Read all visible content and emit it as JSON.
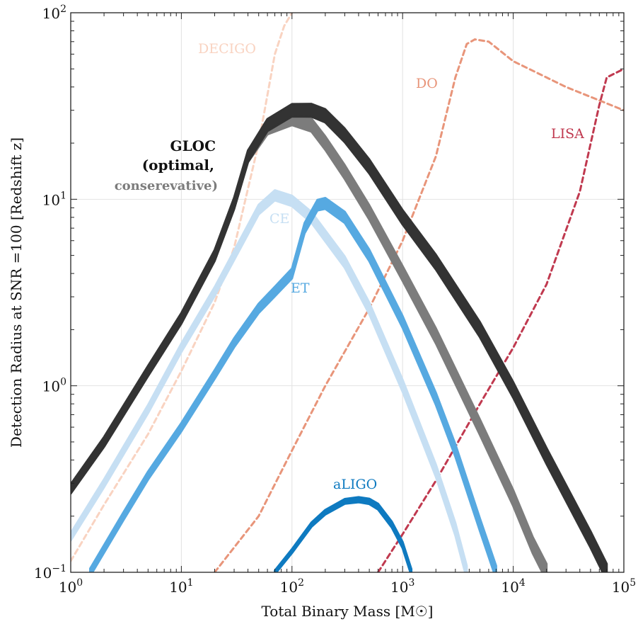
{
  "chart_data": {
    "type": "line",
    "title": "",
    "xlabel": "Total Binary Mass [M☉]",
    "ylabel": "Detection Radius at SNR =100 [Redshift  z]",
    "xscale": "log",
    "yscale": "log",
    "xlim": [
      1,
      100000
    ],
    "ylim": [
      0.1,
      100
    ],
    "grid": true,
    "x_ticks": [
      {
        "value": 1,
        "base": "10",
        "exp": "0"
      },
      {
        "value": 10,
        "base": "10",
        "exp": "1"
      },
      {
        "value": 100,
        "base": "10",
        "exp": "2"
      },
      {
        "value": 1000,
        "base": "10",
        "exp": "3"
      },
      {
        "value": 10000,
        "base": "10",
        "exp": "4"
      },
      {
        "value": 100000,
        "base": "10",
        "exp": "5"
      }
    ],
    "y_ticks": [
      {
        "value": 0.1,
        "base": "10",
        "exp": "−1"
      },
      {
        "value": 1,
        "base": "10",
        "exp": "0"
      },
      {
        "value": 10,
        "base": "10",
        "exp": "1"
      },
      {
        "value": 100,
        "base": "10",
        "exp": "2"
      }
    ],
    "series": [
      {
        "name": "DECIGO",
        "color": "#f9d3c1",
        "style": "dashed",
        "x": [
          1,
          2,
          5,
          10,
          20,
          30,
          50,
          70,
          85,
          100
        ],
        "y": [
          0.115,
          0.23,
          0.55,
          1.2,
          2.8,
          5.5,
          20,
          60,
          85,
          100
        ]
      },
      {
        "name": "DO",
        "color": "#e8957a",
        "style": "dashed",
        "x": [
          20,
          50,
          100,
          200,
          500,
          1000,
          2000,
          3000,
          3800,
          4500,
          6000,
          10000,
          30000,
          100000
        ],
        "y": [
          0.1,
          0.2,
          0.45,
          1.0,
          2.6,
          6.0,
          17,
          45,
          68,
          72,
          70,
          55,
          40,
          30
        ]
      },
      {
        "name": "LISA",
        "color": "#c0394f",
        "style": "dashed",
        "x": [
          600,
          1000,
          2000,
          5000,
          10000,
          20000,
          40000,
          60000,
          70000,
          100000
        ],
        "y": [
          0.1,
          0.16,
          0.31,
          0.8,
          1.6,
          3.5,
          11,
          32,
          45,
          50
        ]
      },
      {
        "name": "GLOC (conservative)",
        "color": "#7c7c7c",
        "style": "band",
        "width_dex": [
          0.05,
          0.09
        ],
        "x": [
          1,
          2,
          5,
          10,
          20,
          30,
          40,
          60,
          100,
          150,
          200,
          300,
          500,
          1000,
          2000,
          5000,
          10000,
          15000,
          20000
        ],
        "y": [
          0.28,
          0.5,
          1.2,
          2.3,
          5.0,
          9.5,
          17,
          24,
          27,
          25,
          20,
          14,
          8.5,
          4.0,
          1.85,
          0.6,
          0.25,
          0.14,
          0.1
        ]
      },
      {
        "name": "GLOC (optimal)",
        "color": "#333333",
        "style": "band",
        "width_dex": [
          0.05,
          0.09
        ],
        "x": [
          1,
          2,
          5,
          10,
          20,
          30,
          40,
          60,
          100,
          150,
          200,
          300,
          500,
          1000,
          2000,
          5000,
          10000,
          20000,
          50000,
          70000
        ],
        "y": [
          0.28,
          0.5,
          1.2,
          2.3,
          5.0,
          9.5,
          17,
          25,
          30,
          30,
          28,
          22,
          15,
          8.0,
          4.6,
          2.0,
          0.95,
          0.42,
          0.15,
          0.1
        ]
      },
      {
        "name": "CE",
        "color": "#c6dff3",
        "style": "band",
        "width_dex": [
          0.04,
          0.07
        ],
        "x": [
          1,
          2,
          5,
          10,
          20,
          30,
          50,
          70,
          100,
          150,
          300,
          500,
          1000,
          2000,
          3000,
          3800
        ],
        "y": [
          0.155,
          0.3,
          0.75,
          1.6,
          3.2,
          5.0,
          8.8,
          10.5,
          9.8,
          8.0,
          4.6,
          2.6,
          1.0,
          0.35,
          0.17,
          0.1
        ]
      },
      {
        "name": "ET",
        "color": "#56a9e1",
        "style": "band",
        "width_dex": [
          0.04,
          0.07
        ],
        "x": [
          1.5,
          3,
          5,
          10,
          20,
          30,
          50,
          70,
          100,
          130,
          170,
          200,
          300,
          500,
          1000,
          2000,
          3000,
          5000,
          7000
        ],
        "y": [
          0.1,
          0.2,
          0.33,
          0.6,
          1.15,
          1.7,
          2.6,
          3.2,
          4.0,
          7.0,
          9.3,
          9.5,
          8.0,
          5.0,
          2.2,
          0.85,
          0.45,
          0.18,
          0.1
        ]
      },
      {
        "name": "aLIGO",
        "color": "#0e7ac0",
        "style": "band",
        "width_dex": [
          0.02,
          0.035
        ],
        "x": [
          70,
          100,
          150,
          200,
          300,
          400,
          500,
          600,
          800,
          1000,
          1200
        ],
        "y": [
          0.1,
          0.13,
          0.18,
          0.21,
          0.24,
          0.245,
          0.24,
          0.225,
          0.18,
          0.14,
          0.1
        ]
      }
    ],
    "labels": {
      "decigo": "DECIGO",
      "do": "DO",
      "lisa": "LISA",
      "ce": "CE",
      "et": "ET",
      "aligo": "aLIGO",
      "gloc_line1": "GLOC",
      "gloc_line2": "(optimal,",
      "gloc_line3": "conserevative)"
    }
  }
}
